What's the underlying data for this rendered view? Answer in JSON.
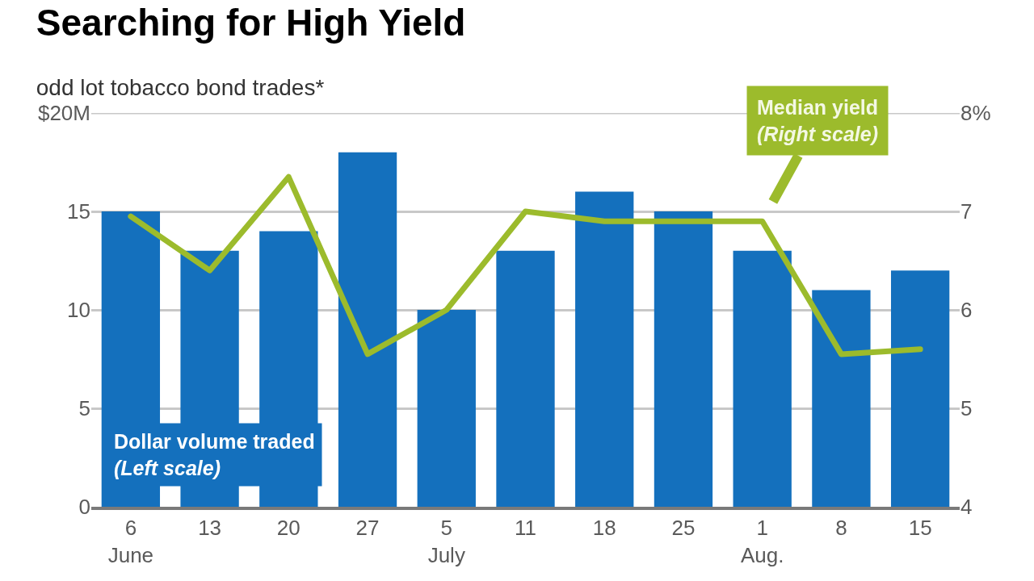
{
  "chart_data": {
    "type": "bar",
    "title": "Searching for High Yield",
    "subtitle": "odd lot tobacco bond trades*",
    "categories": [
      "6\nJune",
      "13",
      "20",
      "27",
      "5\nJuly",
      "11",
      "18",
      "25",
      "1\nAug.",
      "8",
      "15"
    ],
    "series": [
      {
        "name": "Dollar volume traded\n(Left scale)",
        "color": "#1470bd",
        "values": [
          15,
          13,
          14,
          18,
          10,
          13,
          16,
          15,
          13,
          11,
          12
        ]
      },
      {
        "type": "line",
        "axis": "y2",
        "name": "Median yield\n(Right scale)",
        "color": "#9cbb2c",
        "values": [
          6.95,
          6.4,
          7.35,
          5.55,
          6.0,
          7.0,
          6.9,
          6.9,
          6.9,
          5.55,
          5.6
        ]
      }
    ],
    "ylim": [
      0,
      20
    ],
    "yticks": [
      0,
      5,
      10,
      15,
      {
        "value": 20,
        "label": "$20M"
      }
    ],
    "y2lim": [
      4,
      8
    ],
    "y2ticks": [
      4,
      5,
      6,
      7,
      {
        "value": 8,
        "label": "8%"
      }
    ],
    "grid": "y",
    "line_style": "solid"
  }
}
